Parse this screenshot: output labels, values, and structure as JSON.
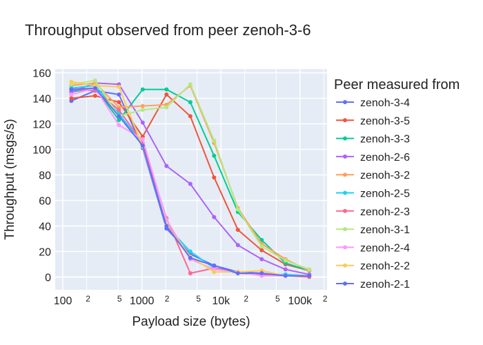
{
  "chart_data": {
    "type": "line",
    "title": "Throughput observed from peer zenoh-3-6",
    "xlabel": "Payload size (bytes)",
    "ylabel": "Throughput (msgs/s)",
    "xscale": "log",
    "xlim": [
      80,
      220000
    ],
    "ylim": [
      -10,
      163
    ],
    "grid": true,
    "legend_title": "Peer measured from",
    "legend_position": "right",
    "x_ticks": [
      {
        "value": 100,
        "label": "100",
        "minor": false
      },
      {
        "value": 200,
        "label": "2",
        "minor": true
      },
      {
        "value": 500,
        "label": "5",
        "minor": true
      },
      {
        "value": 1000,
        "label": "1000",
        "minor": false
      },
      {
        "value": 2000,
        "label": "2",
        "minor": true
      },
      {
        "value": 5000,
        "label": "5",
        "minor": true
      },
      {
        "value": 10000,
        "label": "10k",
        "minor": false
      },
      {
        "value": 20000,
        "label": "2",
        "minor": true
      },
      {
        "value": 50000,
        "label": "5",
        "minor": true
      },
      {
        "value": 100000,
        "label": "100k",
        "minor": false
      },
      {
        "value": 200000,
        "label": "2",
        "minor": true
      }
    ],
    "y_ticks": [
      0,
      20,
      40,
      60,
      80,
      100,
      120,
      140,
      160
    ],
    "x": [
      128,
      256,
      512,
      1024,
      2048,
      4096,
      8192,
      16384,
      32768,
      65536,
      131072
    ],
    "series": [
      {
        "name": "zenoh-3-4",
        "color": "#636efa",
        "values": [
          138,
          146,
          143,
          101,
          38,
          18,
          9,
          4,
          3,
          1,
          1
        ]
      },
      {
        "name": "zenoh-3-5",
        "color": "#ef553b",
        "values": [
          140,
          142,
          137,
          110,
          143,
          126,
          78,
          37,
          21,
          10,
          5
        ]
      },
      {
        "name": "zenoh-3-3",
        "color": "#00cc96",
        "values": [
          145,
          148,
          123,
          147,
          147,
          137,
          95,
          51,
          29,
          11,
          5
        ]
      },
      {
        "name": "zenoh-2-6",
        "color": "#ab63fa",
        "values": [
          145,
          152,
          151,
          121,
          87,
          73,
          47,
          25,
          14,
          6,
          2
        ]
      },
      {
        "name": "zenoh-3-2",
        "color": "#ffa15a",
        "values": [
          150,
          152,
          133,
          134,
          135,
          150,
          105,
          54,
          26,
          14,
          5
        ]
      },
      {
        "name": "zenoh-2-5",
        "color": "#19d3f3",
        "values": [
          148,
          150,
          128,
          104,
          40,
          20,
          7,
          4,
          2,
          2,
          1
        ]
      },
      {
        "name": "zenoh-2-3",
        "color": "#ff6692",
        "values": [
          147,
          146,
          131,
          105,
          46,
          3,
          7,
          3,
          2,
          1,
          0
        ]
      },
      {
        "name": "zenoh-3-1",
        "color": "#b6e880",
        "values": [
          151,
          154,
          126,
          131,
          133,
          151,
          107,
          53,
          24,
          13,
          6
        ]
      },
      {
        "name": "zenoh-2-4",
        "color": "#ff97ff",
        "values": [
          143,
          148,
          119,
          108,
          45,
          14,
          6,
          4,
          1,
          1,
          1
        ]
      },
      {
        "name": "zenoh-2-2",
        "color": "#fecb52",
        "values": [
          153,
          150,
          149,
          102,
          41,
          16,
          4,
          4,
          5,
          1,
          1
        ]
      },
      {
        "name": "zenoh-2-1",
        "color": "#636efa",
        "values": [
          147,
          148,
          126,
          103,
          40,
          15,
          9,
          3,
          3,
          1,
          1
        ]
      }
    ]
  }
}
